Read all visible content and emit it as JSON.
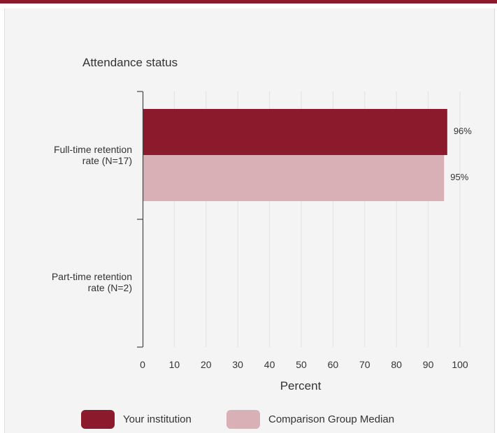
{
  "chart_data": {
    "type": "bar",
    "orientation": "horizontal",
    "title": "Attendance status",
    "xlabel": "Percent",
    "xlim": [
      0,
      100
    ],
    "xticks": [
      0,
      10,
      20,
      30,
      40,
      50,
      60,
      70,
      80,
      90,
      100
    ],
    "categories": [
      "Full-time retention rate (N=17)",
      "Part-time retention rate (N=2)"
    ],
    "category_lines": [
      [
        "Full-time retention",
        "rate (N=17)"
      ],
      [
        "Part-time retention",
        "rate (N=2)"
      ]
    ],
    "series": [
      {
        "name": "Your institution",
        "color": "#8b1a2c",
        "values": [
          96,
          null
        ],
        "labels": [
          "96%",
          ""
        ]
      },
      {
        "name": "Comparison Group Median",
        "color": "#d9b0b6",
        "values": [
          95,
          null
        ],
        "labels": [
          "95%",
          ""
        ]
      }
    ],
    "grid": true,
    "legend_position": "bottom"
  }
}
